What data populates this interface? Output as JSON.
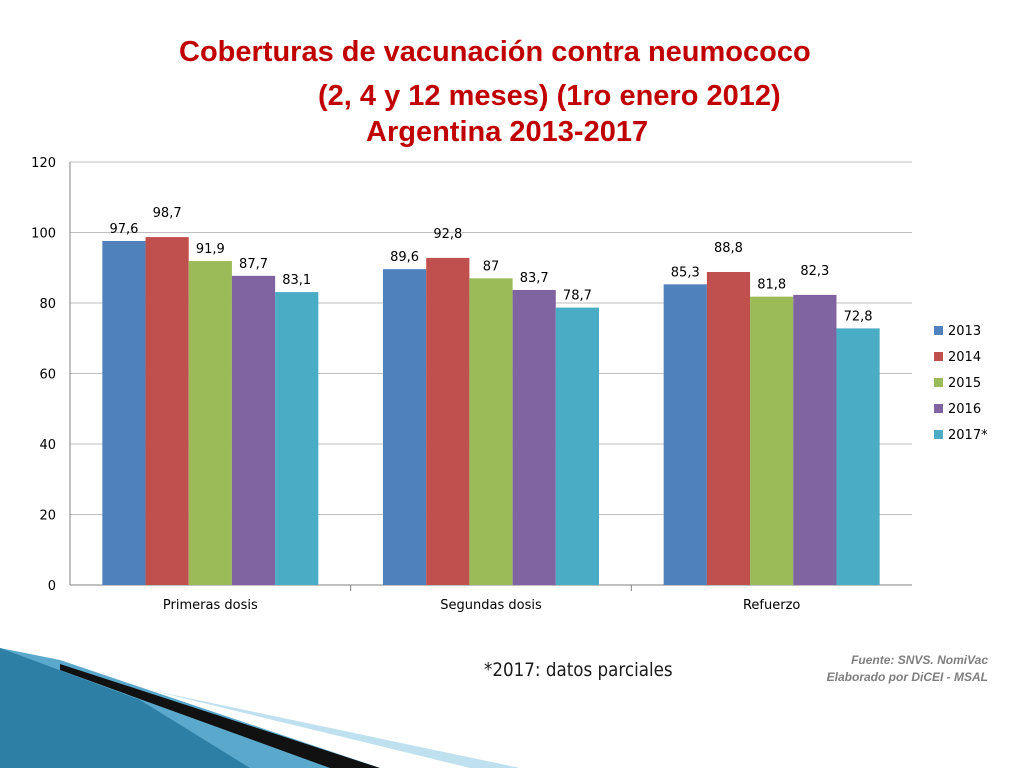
{
  "title_lines": [
    "Coberturas de vacunación contra neumococo",
    "(2, 4 y 12 meses) (1ro enero 2012)",
    "Argentina 2013-2017"
  ],
  "chart_data": {
    "type": "bar",
    "categories": [
      "Primeras dosis",
      "Segundas dosis",
      "Refuerzo"
    ],
    "series": [
      {
        "name": "2013",
        "values": [
          97.6,
          89.6,
          85.3
        ],
        "labels": [
          "97,6",
          "89,6",
          "85,3"
        ],
        "color": "#4f81bd"
      },
      {
        "name": "2014",
        "values": [
          98.7,
          92.8,
          88.8
        ],
        "labels": [
          "98,7",
          "92,8",
          "88,8"
        ],
        "color": "#c0504d"
      },
      {
        "name": "2015",
        "values": [
          91.9,
          87,
          81.8
        ],
        "labels": [
          "91,9",
          "87",
          "81,8"
        ],
        "color": "#9bbb59"
      },
      {
        "name": "2016",
        "values": [
          87.7,
          83.7,
          82.3
        ],
        "labels": [
          "87,7",
          "83,7",
          "82,3"
        ],
        "color": "#8064a2"
      },
      {
        "name": "2017*",
        "values": [
          83.1,
          78.7,
          72.8
        ],
        "labels": [
          "83,1",
          "78,7",
          "72,8"
        ],
        "color": "#4bacc6"
      }
    ],
    "ylim": [
      0,
      120
    ],
    "yticks": [
      0,
      20,
      40,
      60,
      80,
      100,
      120
    ],
    "grid": true,
    "legend": "right"
  },
  "footnote": "*2017: datos parciales",
  "source": {
    "line1": "Fuente: SNVS. NomiVac",
    "line2": "Elaborado por DiCEI - MSAL"
  }
}
